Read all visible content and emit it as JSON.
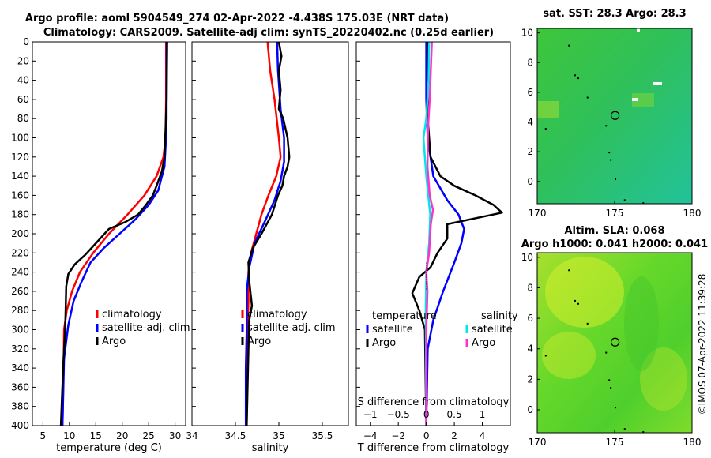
{
  "header": {
    "line1": "Argo profile: aoml 5904549_274 02-Apr-2022 -4.438S 175.03E (NRT data)",
    "line2": "Climatology: CARS2009. Satellite-adj clim: synTS_20220402.nc (0.25d earlier)"
  },
  "copyright": "©IMOS 07-Apr-2022 11:39:28",
  "colors": {
    "climatology": "#ff0000",
    "satellite": "#0000ff",
    "argo": "#000000",
    "sat_sal": "#00e5e5",
    "argo_sal": "#ff33cc"
  },
  "chart_data": [
    {
      "type": "line",
      "name": "temperature",
      "xlabel": "temperature (deg C)",
      "xlim": [
        3,
        32
      ],
      "xticks": [
        5,
        10,
        15,
        20,
        25,
        30
      ],
      "ylim": [
        400,
        0
      ],
      "yticks": [
        0,
        20,
        40,
        60,
        80,
        100,
        120,
        140,
        160,
        180,
        200,
        220,
        240,
        260,
        280,
        300,
        320,
        340,
        360,
        380,
        400
      ],
      "legend": [
        "climatology",
        "satellite-adj. clim",
        "Argo"
      ],
      "series": [
        {
          "name": "climatology",
          "points": [
            [
              28.3,
              0
            ],
            [
              28.3,
              60
            ],
            [
              28.2,
              100
            ],
            [
              27.8,
              120
            ],
            [
              26.5,
              140
            ],
            [
              24.2,
              160
            ],
            [
              21.0,
              180
            ],
            [
              17.5,
              200
            ],
            [
              14.5,
              220
            ],
            [
              12.0,
              240
            ],
            [
              10.5,
              260
            ],
            [
              9.5,
              280
            ],
            [
              9.0,
              300
            ],
            [
              8.9,
              340
            ],
            [
              8.7,
              400
            ]
          ]
        },
        {
          "name": "satellite-adj. clim",
          "points": [
            [
              28.4,
              0
            ],
            [
              28.4,
              80
            ],
            [
              28.3,
              100
            ],
            [
              28.0,
              130
            ],
            [
              26.8,
              155
            ],
            [
              25.0,
              170
            ],
            [
              22.5,
              185
            ],
            [
              19.5,
              200
            ],
            [
              16.5,
              215
            ],
            [
              14.0,
              230
            ],
            [
              12.3,
              250
            ],
            [
              10.8,
              270
            ],
            [
              9.8,
              295
            ],
            [
              9.0,
              330
            ],
            [
              8.7,
              400
            ]
          ]
        },
        {
          "name": "Argo",
          "points": [
            [
              28.5,
              0
            ],
            [
              28.4,
              60
            ],
            [
              28.2,
              90
            ],
            [
              28.0,
              120
            ],
            [
              27.5,
              135
            ],
            [
              26.5,
              150
            ],
            [
              25.8,
              160
            ],
            [
              24.5,
              170
            ],
            [
              23.0,
              180
            ],
            [
              20.5,
              188
            ],
            [
              17.5,
              195
            ],
            [
              15.0,
              210
            ],
            [
              13.0,
              222
            ],
            [
              11.0,
              232
            ],
            [
              9.8,
              242
            ],
            [
              9.4,
              255
            ],
            [
              9.3,
              280
            ],
            [
              9.2,
              300
            ],
            [
              8.9,
              330
            ],
            [
              8.6,
              370
            ],
            [
              8.4,
              400
            ]
          ]
        }
      ]
    },
    {
      "type": "line",
      "name": "salinity",
      "xlabel": "salinity",
      "xlim": [
        34.0,
        35.8
      ],
      "xticks": [
        34,
        34.5,
        35,
        35.5
      ],
      "ylim": [
        400,
        0
      ],
      "legend": [
        "climatology",
        "satellite-adj. clim",
        "Argo"
      ],
      "series": [
        {
          "name": "climatology",
          "points": [
            [
              34.87,
              0
            ],
            [
              34.9,
              30
            ],
            [
              34.95,
              60
            ],
            [
              35.0,
              100
            ],
            [
              35.02,
              120
            ],
            [
              34.97,
              140
            ],
            [
              34.88,
              160
            ],
            [
              34.8,
              180
            ],
            [
              34.74,
              200
            ],
            [
              34.68,
              220
            ],
            [
              34.65,
              240
            ],
            [
              34.65,
              270
            ],
            [
              34.64,
              300
            ],
            [
              34.63,
              340
            ],
            [
              34.62,
              400
            ]
          ]
        },
        {
          "name": "satellite-adj. clim",
          "points": [
            [
              34.98,
              0
            ],
            [
              34.99,
              30
            ],
            [
              35.02,
              70
            ],
            [
              35.06,
              100
            ],
            [
              35.06,
              125
            ],
            [
              35.02,
              145
            ],
            [
              34.95,
              165
            ],
            [
              34.85,
              185
            ],
            [
              34.72,
              210
            ],
            [
              34.66,
              235
            ],
            [
              34.63,
              260
            ],
            [
              34.63,
              300
            ],
            [
              34.62,
              340
            ],
            [
              34.62,
              400
            ]
          ]
        },
        {
          "name": "Argo",
          "points": [
            [
              35.0,
              0
            ],
            [
              35.03,
              15
            ],
            [
              35.0,
              30
            ],
            [
              35.02,
              50
            ],
            [
              35.0,
              70
            ],
            [
              35.05,
              80
            ],
            [
              35.1,
              100
            ],
            [
              35.12,
              120
            ],
            [
              35.1,
              130
            ],
            [
              35.06,
              140
            ],
            [
              35.04,
              150
            ],
            [
              34.99,
              160
            ],
            [
              34.92,
              180
            ],
            [
              34.8,
              200
            ],
            [
              34.7,
              215
            ],
            [
              34.65,
              230
            ],
            [
              34.66,
              250
            ],
            [
              34.69,
              275
            ],
            [
              34.66,
              290
            ],
            [
              34.65,
              320
            ],
            [
              34.64,
              360
            ],
            [
              34.63,
              400
            ]
          ]
        }
      ]
    },
    {
      "type": "line",
      "name": "difference from climatology",
      "xlabel": "T difference from climatology",
      "x2label": "S difference from climatology",
      "xlim": [
        -5,
        6
      ],
      "xticks": [
        -4,
        -2,
        0,
        2,
        4
      ],
      "x2lim": [
        -1.25,
        1.5
      ],
      "x2ticks": [
        -1,
        -0.5,
        0,
        0.5,
        1
      ],
      "ylim": [
        400,
        0
      ],
      "legend_left_title": "temperature",
      "legend_right_title": "salinity",
      "legend": [
        "satellite",
        "Argo",
        "satellite",
        "Argo"
      ],
      "series": [
        {
          "name": "temperature satellite",
          "points": [
            [
              0.0,
              0
            ],
            [
              0.0,
              60
            ],
            [
              0.1,
              100
            ],
            [
              0.5,
              140
            ],
            [
              1.5,
              165
            ],
            [
              2.3,
              180
            ],
            [
              2.7,
              195
            ],
            [
              2.5,
              210
            ],
            [
              2.0,
              230
            ],
            [
              1.2,
              260
            ],
            [
              0.5,
              290
            ],
            [
              0.1,
              320
            ],
            [
              0.0,
              400
            ]
          ]
        },
        {
          "name": "temperature Argo",
          "points": [
            [
              0.1,
              0
            ],
            [
              0.1,
              80
            ],
            [
              0.3,
              120
            ],
            [
              1.0,
              140
            ],
            [
              2.0,
              150
            ],
            [
              3.5,
              160
            ],
            [
              4.8,
              170
            ],
            [
              5.4,
              178
            ],
            [
              3.8,
              183
            ],
            [
              1.5,
              190
            ],
            [
              1.5,
              205
            ],
            [
              0.8,
              220
            ],
            [
              0.3,
              235
            ],
            [
              -0.5,
              245
            ],
            [
              -1.0,
              262
            ],
            [
              -0.5,
              280
            ],
            [
              -0.1,
              300
            ],
            [
              0.0,
              400
            ]
          ]
        },
        {
          "name": "salinity satellite",
          "points": [
            [
              0.05,
              0
            ],
            [
              0.04,
              40
            ],
            [
              0.0,
              80
            ],
            [
              -0.05,
              100
            ],
            [
              0.0,
              140
            ],
            [
              0.07,
              180
            ],
            [
              0.05,
              210
            ],
            [
              0.0,
              240
            ],
            [
              -0.01,
              280
            ],
            [
              0.0,
              400
            ]
          ]
        },
        {
          "name": "salinity Argo",
          "points": [
            [
              0.1,
              0
            ],
            [
              0.08,
              30
            ],
            [
              0.06,
              60
            ],
            [
              0.03,
              90
            ],
            [
              0.02,
              130
            ],
            [
              0.06,
              160
            ],
            [
              0.12,
              175
            ],
            [
              0.08,
              190
            ],
            [
              0.05,
              220
            ],
            [
              0.0,
              240
            ],
            [
              0.02,
              260
            ],
            [
              0.0,
              300
            ],
            [
              0.0,
              400
            ]
          ]
        }
      ]
    },
    {
      "type": "heatmap",
      "name": "satellite SST map",
      "title": "sat. SST: 28.3 Argo: 28.3",
      "xlim": [
        170,
        180
      ],
      "xticks": [
        170,
        175,
        180
      ],
      "ylim": [
        -1.5,
        10.3
      ],
      "yticks": [
        0,
        2,
        4,
        6,
        8,
        10
      ],
      "argo_position": [
        175.03,
        4.438
      ]
    },
    {
      "type": "heatmap",
      "name": "altimetry SLA map",
      "title1": "Altim. SLA: 0.068",
      "title2": "Argo h1000: 0.041 h2000: 0.041",
      "xlim": [
        170,
        180
      ],
      "xticks": [
        170,
        175,
        180
      ],
      "ylim": [
        -1.5,
        10.3
      ],
      "yticks": [
        0,
        2,
        4,
        6,
        8,
        10
      ],
      "argo_position": [
        175.03,
        4.438
      ]
    }
  ]
}
